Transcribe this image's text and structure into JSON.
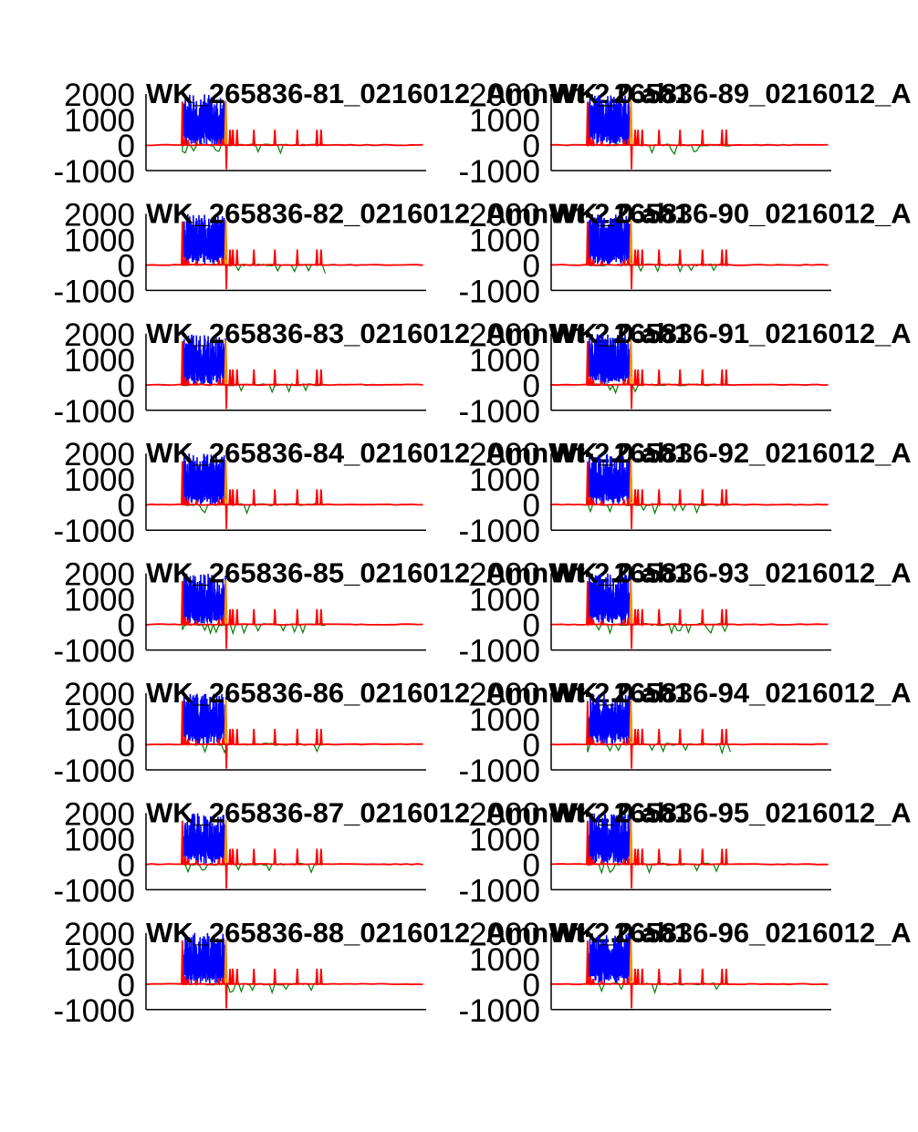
{
  "colors": {
    "background": "#ffffff",
    "axis": "#000000",
    "series_1": "#0000ff",
    "series_2": "#ff0000",
    "series_3": "#ff8c00",
    "series_4": "#008000"
  },
  "chart_data": [
    {
      "type": "line",
      "title": "WK_265836-81_0216012_AmnWt-2.0.ab1",
      "ylim": [
        -1000,
        2000
      ],
      "yticks": [
        2000,
        1000,
        0,
        -1000
      ],
      "grid": false
    },
    {
      "type": "line",
      "title": "WK_265836-89_0216012_A",
      "ylim": [
        -1000,
        2000
      ],
      "yticks": [
        2000,
        1000,
        0,
        -1000
      ],
      "grid": false
    },
    {
      "type": "line",
      "title": "WK_265836-82_0216012_AmnWt-2.0.ab1",
      "ylim": [
        -1000,
        2000
      ],
      "yticks": [
        2000,
        1000,
        0,
        -1000
      ],
      "grid": false
    },
    {
      "type": "line",
      "title": "WK_265836-90_0216012_A",
      "ylim": [
        -1000,
        2000
      ],
      "yticks": [
        2000,
        1000,
        0,
        -1000
      ],
      "grid": false
    },
    {
      "type": "line",
      "title": "WK_265836-83_0216012_AmnWt-2.0.ab1",
      "ylim": [
        -1000,
        2000
      ],
      "yticks": [
        2000,
        1000,
        0,
        -1000
      ],
      "grid": false
    },
    {
      "type": "line",
      "title": "WK_265836-91_0216012_A",
      "ylim": [
        -1000,
        2000
      ],
      "yticks": [
        2000,
        1000,
        0,
        -1000
      ],
      "grid": false
    },
    {
      "type": "line",
      "title": "WK_265836-84_0216012_AmnWt-2.0.ab1",
      "ylim": [
        -1000,
        2000
      ],
      "yticks": [
        2000,
        1000,
        0,
        -1000
      ],
      "grid": false
    },
    {
      "type": "line",
      "title": "WK_265836-92_0216012_A",
      "ylim": [
        -1000,
        2000
      ],
      "yticks": [
        2000,
        1000,
        0,
        -1000
      ],
      "grid": false
    },
    {
      "type": "line",
      "title": "WK_265836-85_0216012_AmnWt-2.0.ab1",
      "ylim": [
        -1000,
        2000
      ],
      "yticks": [
        2000,
        1000,
        0,
        -1000
      ],
      "grid": false
    },
    {
      "type": "line",
      "title": "WK_265836-93_0216012_A",
      "ylim": [
        -1000,
        2000
      ],
      "yticks": [
        2000,
        1000,
        0,
        -1000
      ],
      "grid": false
    },
    {
      "type": "line",
      "title": "WK_265836-86_0216012_AmnWt-2.0.ab1",
      "ylim": [
        -1000,
        2000
      ],
      "yticks": [
        2000,
        1000,
        0,
        -1000
      ],
      "grid": false
    },
    {
      "type": "line",
      "title": "WK_265836-94_0216012_A",
      "ylim": [
        -1000,
        2000
      ],
      "yticks": [
        2000,
        1000,
        0,
        -1000
      ],
      "grid": false
    },
    {
      "type": "line",
      "title": "WK_265836-87_0216012_AmnWt-2.0.ab1",
      "ylim": [
        -1000,
        2000
      ],
      "yticks": [
        2000,
        1000,
        0,
        -1000
      ],
      "grid": false
    },
    {
      "type": "line",
      "title": "WK_265836-95_0216012_A",
      "ylim": [
        -1000,
        2000
      ],
      "yticks": [
        2000,
        1000,
        0,
        -1000
      ],
      "grid": false
    },
    {
      "type": "line",
      "title": "WK_265836-88_0216012_AmnWt-2.0.ab1",
      "ylim": [
        -1000,
        2000
      ],
      "yticks": [
        2000,
        1000,
        0,
        -1000
      ],
      "grid": false
    },
    {
      "type": "line",
      "title": "WK_265836-96_0216012_A",
      "ylim": [
        -1000,
        2000
      ],
      "yticks": [
        2000,
        1000,
        0,
        -1000
      ],
      "grid": false
    }
  ]
}
